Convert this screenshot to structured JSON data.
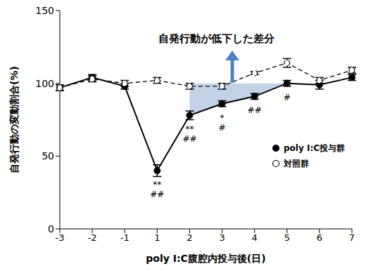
{
  "chart_data": {
    "type": "line",
    "x_label": "poly I:C腹腔内投与後(日)",
    "y_label": "自発行動の変動割合(%)",
    "categories": [
      "-3",
      "-2",
      "-1",
      "1",
      "2",
      "3",
      "4",
      "5",
      "6",
      "7"
    ],
    "ylim": [
      0,
      150
    ],
    "yticks": [
      0,
      50,
      100,
      150
    ],
    "annotation": "自発行動が低下した差分",
    "shaded_region": {
      "x_from": "2",
      "x_to": "5",
      "y_top": 100,
      "color": "#4f81bd"
    },
    "series": [
      {
        "name": "poly I:C投与群",
        "color": "#000000",
        "marker": "filled_circle",
        "line_style": "solid",
        "values": [
          97,
          104,
          98,
          40,
          78,
          86,
          91,
          100,
          99,
          104
        ],
        "errors": [
          2,
          2,
          2,
          4,
          3,
          2,
          2,
          2,
          3,
          2
        ],
        "stars": [
          null,
          null,
          null,
          "**",
          "**",
          "*",
          null,
          null,
          null,
          null
        ],
        "hashes": [
          null,
          null,
          null,
          "##",
          "##",
          "#",
          "##",
          "#",
          null,
          null
        ]
      },
      {
        "name": "対照群",
        "color": "#000000",
        "marker": "open_circle",
        "line_style": "dashed",
        "values": [
          97,
          103,
          100,
          102,
          98,
          98,
          107,
          114,
          102,
          109
        ],
        "errors": [
          2,
          2,
          2,
          2,
          2,
          2,
          1,
          3,
          2,
          2
        ]
      }
    ],
    "legend": "right"
  }
}
